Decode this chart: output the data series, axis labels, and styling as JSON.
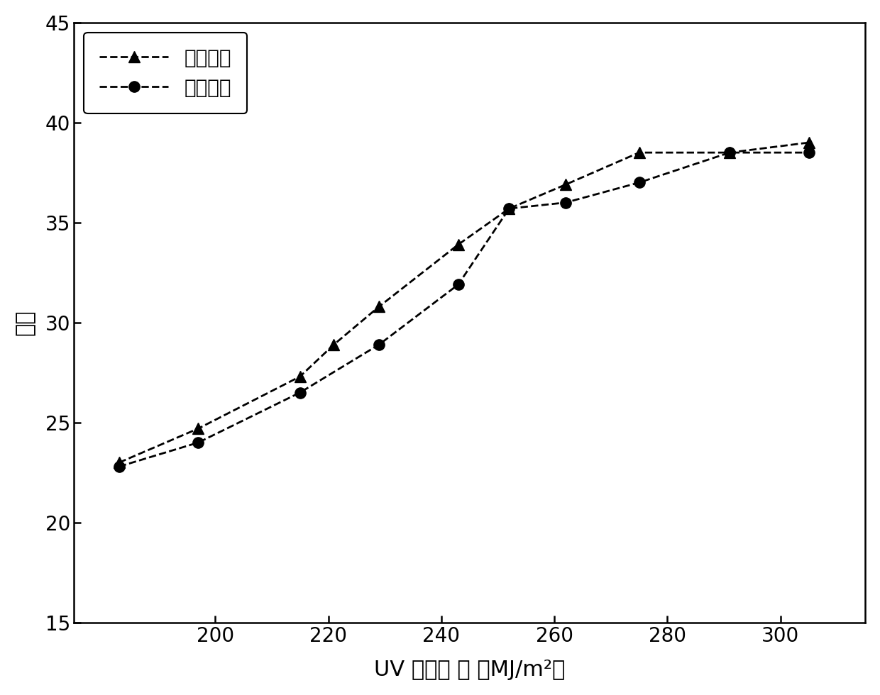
{
  "accelerated_x": [
    183,
    197,
    215,
    221,
    229,
    243,
    252,
    262,
    275,
    291,
    305
  ],
  "accelerated_y": [
    23.0,
    24.7,
    27.3,
    28.9,
    30.8,
    33.9,
    35.7,
    36.9,
    38.5,
    38.5,
    39.0
  ],
  "natural_x": [
    183,
    197,
    215,
    229,
    243,
    252,
    262,
    275,
    291,
    305
  ],
  "natural_y": [
    22.8,
    24.0,
    26.5,
    28.9,
    31.9,
    35.7,
    36.0,
    37.0,
    38.5,
    38.5
  ],
  "xlabel": "UV 辐照量 ／ （MJ/m²）",
  "ylabel": "色差",
  "legend_accelerated": "加速老化",
  "legend_natural": "自然老化",
  "xlim": [
    175,
    315
  ],
  "ylim": [
    15,
    45
  ],
  "yticks": [
    15,
    20,
    25,
    30,
    35,
    40,
    45
  ],
  "xticks": [
    200,
    220,
    240,
    260,
    280,
    300
  ],
  "line_color": "#000000",
  "background_color": "#ffffff"
}
